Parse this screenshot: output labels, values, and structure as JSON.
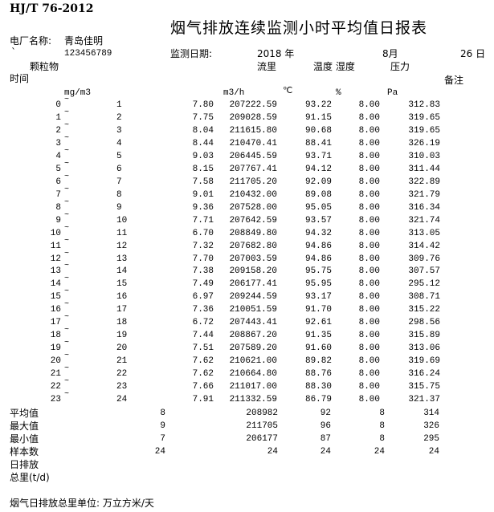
{
  "header": {
    "standard": "HJ/T 76-2012",
    "title": "烟气排放连续监测小时平均值日报表",
    "plant_label": "电厂名称:",
    "plant_name": "青岛佳明",
    "backtick": "`",
    "code": "123456789",
    "date_label": "监测日期:",
    "year": "2018 年",
    "month": "8月",
    "day": "26 日"
  },
  "columns": {
    "particulate": "颗粒物",
    "flow": "流里",
    "temp_humidity": "温度 湿度",
    "pressure": "压力",
    "time": "时间",
    "remarks": "备注",
    "units": {
      "particulate": "mg/m3",
      "flow": "m3/h",
      "temp": "℃",
      "humidity": "%",
      "pressure": "Pa"
    }
  },
  "rows": [
    {
      "start": "0",
      "end": "1",
      "pm": "7.80",
      "flow": "207222.59",
      "temp": "93.22",
      "hum": "8.00",
      "pres": "312.83"
    },
    {
      "start": "1",
      "end": "2",
      "pm": "7.75",
      "flow": "209028.59",
      "temp": "91.15",
      "hum": "8.00",
      "pres": "319.65"
    },
    {
      "start": "2",
      "end": "3",
      "pm": "8.04",
      "flow": "211615.80",
      "temp": "90.68",
      "hum": "8.00",
      "pres": "319.65"
    },
    {
      "start": "3",
      "end": "4",
      "pm": "8.44",
      "flow": "210470.41",
      "temp": "88.41",
      "hum": "8.00",
      "pres": "326.19"
    },
    {
      "start": "4",
      "end": "5",
      "pm": "9.03",
      "flow": "206445.59",
      "temp": "93.71",
      "hum": "8.00",
      "pres": "310.03"
    },
    {
      "start": "5",
      "end": "6",
      "pm": "8.15",
      "flow": "207767.41",
      "temp": "94.12",
      "hum": "8.00",
      "pres": "311.44"
    },
    {
      "start": "6",
      "end": "7",
      "pm": "7.58",
      "flow": "211705.20",
      "temp": "92.09",
      "hum": "8.00",
      "pres": "322.89"
    },
    {
      "start": "7",
      "end": "8",
      "pm": "9.01",
      "flow": "210432.00",
      "temp": "89.08",
      "hum": "8.00",
      "pres": "321.79"
    },
    {
      "start": "8",
      "end": "9",
      "pm": "9.36",
      "flow": "207528.00",
      "temp": "95.05",
      "hum": "8.00",
      "pres": "316.34"
    },
    {
      "start": "9",
      "end": "10",
      "pm": "7.71",
      "flow": "207642.59",
      "temp": "93.57",
      "hum": "8.00",
      "pres": "321.74"
    },
    {
      "start": "10",
      "end": "11",
      "pm": "6.70",
      "flow": "208849.80",
      "temp": "94.32",
      "hum": "8.00",
      "pres": "313.05"
    },
    {
      "start": "11",
      "end": "12",
      "pm": "7.32",
      "flow": "207682.80",
      "temp": "94.86",
      "hum": "8.00",
      "pres": "314.42"
    },
    {
      "start": "12",
      "end": "13",
      "pm": "7.70",
      "flow": "207003.59",
      "temp": "94.86",
      "hum": "8.00",
      "pres": "309.76"
    },
    {
      "start": "13",
      "end": "14",
      "pm": "7.38",
      "flow": "209158.20",
      "temp": "95.75",
      "hum": "8.00",
      "pres": "307.57"
    },
    {
      "start": "14",
      "end": "15",
      "pm": "7.49",
      "flow": "206177.41",
      "temp": "95.95",
      "hum": "8.00",
      "pres": "295.12"
    },
    {
      "start": "15",
      "end": "16",
      "pm": "6.97",
      "flow": "209244.59",
      "temp": "93.17",
      "hum": "8.00",
      "pres": "308.71"
    },
    {
      "start": "16",
      "end": "17",
      "pm": "7.36",
      "flow": "210051.59",
      "temp": "91.70",
      "hum": "8.00",
      "pres": "315.22"
    },
    {
      "start": "17",
      "end": "18",
      "pm": "6.72",
      "flow": "207443.41",
      "temp": "92.61",
      "hum": "8.00",
      "pres": "298.56"
    },
    {
      "start": "18",
      "end": "19",
      "pm": "7.44",
      "flow": "208867.20",
      "temp": "91.35",
      "hum": "8.00",
      "pres": "315.89"
    },
    {
      "start": "19",
      "end": "20",
      "pm": "7.51",
      "flow": "207589.20",
      "temp": "91.60",
      "hum": "8.00",
      "pres": "313.06"
    },
    {
      "start": "20",
      "end": "21",
      "pm": "7.62",
      "flow": "210621.00",
      "temp": "89.82",
      "hum": "8.00",
      "pres": "319.69"
    },
    {
      "start": "21",
      "end": "22",
      "pm": "7.62",
      "flow": "210664.80",
      "temp": "88.76",
      "hum": "8.00",
      "pres": "316.24"
    },
    {
      "start": "22",
      "end": "23",
      "pm": "7.66",
      "flow": "211017.00",
      "temp": "88.30",
      "hum": "8.00",
      "pres": "315.75"
    },
    {
      "start": "23",
      "end": "24",
      "pm": "7.91",
      "flow": "211332.59",
      "temp": "86.79",
      "hum": "8.00",
      "pres": "321.37"
    }
  ],
  "tilde": "~",
  "summary": [
    {
      "label": "平均值",
      "pm": "8",
      "flow": "208982",
      "temp": "92",
      "hum": "8",
      "pres": "314"
    },
    {
      "label": "最大值",
      "pm": "9",
      "flow": "211705",
      "temp": "96",
      "hum": "8",
      "pres": "326"
    },
    {
      "label": "最小值",
      "pm": "7",
      "flow": "206177",
      "temp": "87",
      "hum": "8",
      "pres": "295"
    },
    {
      "label": "样本数",
      "pm": "24",
      "flow": "24",
      "temp": "24",
      "hum": "24",
      "pres": "24"
    }
  ],
  "daily_total_label_1": "日排放",
  "daily_total_label_2": "总里(t/d)",
  "footer_note": "烟气日排放总里单位: 万立方米/天"
}
